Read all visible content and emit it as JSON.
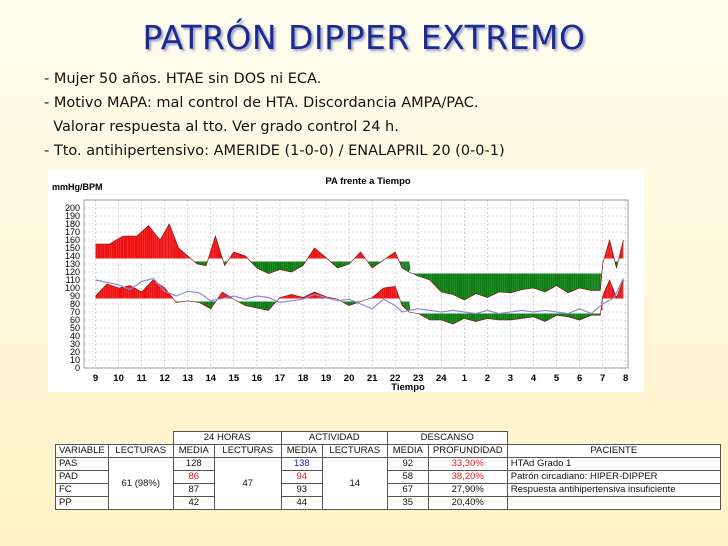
{
  "slide": {
    "title": "PATRÓN DIPPER EXTREMO",
    "bullets": [
      "- Mujer 50 años. HTAE sin DOS ni ECA.",
      "- Motivo MAPA: mal control de HTA. Discordancia AMPA/PAC.",
      "  Valorar respuesta al tto. Ver grado control 24 h.",
      "- Tto. antihipertensivo: AMERIDE (1-0-0) / ENALAPRIL 20 (0-0-1)"
    ]
  },
  "chart_data": {
    "type": "area",
    "title": "PA frente a Tiempo",
    "ylabel": "mmHg/BPM",
    "xlabel": "Tiempo",
    "ylim": [
      0,
      210
    ],
    "yticks": [
      0,
      10,
      20,
      30,
      40,
      50,
      60,
      70,
      80,
      90,
      100,
      110,
      120,
      130,
      140,
      150,
      160,
      170,
      180,
      190,
      200
    ],
    "xticks": [
      "9",
      "10",
      "11",
      "12",
      "13",
      "14",
      "15",
      "16",
      "17",
      "18",
      "19",
      "20",
      "21",
      "22",
      "23",
      "24",
      "1",
      "2",
      "3",
      "4",
      "5",
      "6",
      "7",
      "8"
    ],
    "thresholds": [
      {
        "name": "systolic_day",
        "value": 135,
        "start": 9,
        "end": 22.6
      },
      {
        "name": "systolic_night",
        "value": 120,
        "start": 22.6,
        "end": 7
      },
      {
        "name": "systolic_day_2",
        "value": 135,
        "start": 7,
        "end": 8
      },
      {
        "name": "diastolic_day",
        "value": 85,
        "start": 9,
        "end": 22.6
      },
      {
        "name": "diastolic_night",
        "value": 70,
        "start": 22.6,
        "end": 7
      },
      {
        "name": "diastolic_day_2",
        "value": 85,
        "start": 7,
        "end": 8
      }
    ],
    "series": [
      {
        "values": [
          [
            9,
            155
          ],
          [
            9.6,
            155
          ],
          [
            10.2,
            165
          ],
          [
            10.8,
            165
          ],
          [
            11.3,
            178
          ],
          [
            11.8,
            160
          ],
          [
            12.2,
            180
          ],
          [
            12.6,
            150
          ],
          [
            13,
            140
          ],
          [
            13.4,
            130
          ],
          [
            13.8,
            128
          ],
          [
            14.2,
            165
          ],
          [
            14.6,
            128
          ],
          [
            15,
            145
          ],
          [
            15.5,
            140
          ],
          [
            16,
            125
          ],
          [
            16.5,
            118
          ],
          [
            17,
            123
          ],
          [
            17.5,
            120
          ],
          [
            18,
            128
          ],
          [
            18.5,
            150
          ],
          [
            19,
            138
          ],
          [
            19.5,
            125
          ],
          [
            20,
            130
          ],
          [
            20.5,
            145
          ],
          [
            21,
            125
          ],
          [
            21.5,
            135
          ],
          [
            22,
            145
          ],
          [
            22.3,
            125
          ],
          [
            22.6,
            120
          ],
          [
            23,
            115
          ],
          [
            23.5,
            110
          ],
          [
            24,
            95
          ],
          [
            24.5,
            92
          ],
          [
            25,
            85
          ],
          [
            25.5,
            93
          ],
          [
            26,
            88
          ],
          [
            26.5,
            95
          ],
          [
            27,
            94
          ],
          [
            27.5,
            98
          ],
          [
            28,
            100
          ],
          [
            28.5,
            95
          ],
          [
            29,
            103
          ],
          [
            29.5,
            94
          ],
          [
            30,
            100
          ],
          [
            30.5,
            97
          ],
          [
            30.9,
            97
          ],
          [
            31,
            130
          ],
          [
            31.3,
            160
          ],
          [
            31.6,
            125
          ],
          [
            31.9,
            160
          ]
        ]
      },
      {
        "values": [
          [
            9,
            90
          ],
          [
            9.5,
            105
          ],
          [
            10,
            100
          ],
          [
            10.5,
            103
          ],
          [
            11,
            95
          ],
          [
            11.5,
            110
          ],
          [
            12,
            100
          ],
          [
            12.5,
            82
          ],
          [
            13,
            84
          ],
          [
            13.5,
            82
          ],
          [
            14,
            74
          ],
          [
            14.5,
            95
          ],
          [
            15,
            86
          ],
          [
            15.5,
            78
          ],
          [
            16,
            75
          ],
          [
            16.5,
            72
          ],
          [
            17,
            88
          ],
          [
            17.5,
            92
          ],
          [
            18,
            88
          ],
          [
            18.5,
            95
          ],
          [
            19,
            89
          ],
          [
            19.5,
            86
          ],
          [
            20,
            78
          ],
          [
            20.5,
            83
          ],
          [
            21,
            88
          ],
          [
            21.5,
            100
          ],
          [
            22,
            102
          ],
          [
            22.3,
            78
          ],
          [
            22.6,
            70
          ],
          [
            23,
            68
          ],
          [
            23.5,
            60
          ],
          [
            24,
            60
          ],
          [
            24.5,
            55
          ],
          [
            25,
            62
          ],
          [
            25.5,
            58
          ],
          [
            26,
            62
          ],
          [
            26.5,
            60
          ],
          [
            27,
            60
          ],
          [
            27.5,
            62
          ],
          [
            28,
            64
          ],
          [
            28.5,
            58
          ],
          [
            29,
            66
          ],
          [
            29.5,
            64
          ],
          [
            30,
            60
          ],
          [
            30.5,
            66
          ],
          [
            30.9,
            66
          ],
          [
            31,
            90
          ],
          [
            31.3,
            110
          ],
          [
            31.6,
            88
          ],
          [
            31.9,
            110
          ]
        ]
      },
      {
        "values": [
          [
            9,
            110
          ],
          [
            10,
            104
          ],
          [
            10.5,
            98
          ],
          [
            11,
            108
          ],
          [
            11.5,
            112
          ],
          [
            12,
            96
          ],
          [
            12.5,
            90
          ],
          [
            13,
            96
          ],
          [
            13.5,
            94
          ],
          [
            14,
            84
          ],
          [
            15,
            90
          ],
          [
            15.5,
            86
          ],
          [
            16,
            90
          ],
          [
            16.5,
            88
          ],
          [
            17,
            82
          ],
          [
            17.5,
            84
          ],
          [
            18,
            86
          ],
          [
            18.5,
            92
          ],
          [
            19,
            88
          ],
          [
            19.5,
            84
          ],
          [
            20,
            86
          ],
          [
            20.5,
            80
          ],
          [
            21,
            74
          ],
          [
            21.5,
            86
          ],
          [
            22,
            78
          ],
          [
            22.3,
            70
          ],
          [
            22.6,
            72
          ],
          [
            23,
            74
          ],
          [
            23.5,
            72
          ],
          [
            24,
            70
          ],
          [
            24.5,
            72
          ],
          [
            25,
            70
          ],
          [
            25.5,
            68
          ],
          [
            26,
            72
          ],
          [
            26.5,
            68
          ],
          [
            27,
            70
          ],
          [
            27.5,
            72
          ],
          [
            28,
            70
          ],
          [
            28.5,
            72
          ],
          [
            29,
            70
          ],
          [
            29.5,
            68
          ],
          [
            30,
            74
          ],
          [
            30.5,
            68
          ],
          [
            31,
            80
          ],
          [
            31.5,
            88
          ],
          [
            31.9,
            112
          ]
        ]
      }
    ]
  },
  "colors": {
    "excess": "#ee1111",
    "deficit": "#0b7d12",
    "fc_line": "#8b8bdb",
    "title": "#1c2b8f"
  },
  "table": {
    "group_headers": [
      "24 HORAS",
      "ACTIVIDAD",
      "DESCANSO"
    ],
    "columns": [
      "VARIABLE",
      "LECTURAS",
      "MEDIA",
      "LECTURAS",
      "MEDIA",
      "LECTURAS",
      "MEDIA",
      "PROFUNDIDAD",
      "PACIENTE"
    ],
    "lecturas_24h": "61 (98%)",
    "lecturas_actividad": "47",
    "lecturas_descanso": "14",
    "rows": [
      {
        "variable": "PAS",
        "media24": "128",
        "media_act": "138",
        "media_desc": "92",
        "profundidad": "33,30%"
      },
      {
        "variable": "PAD",
        "media24": "86",
        "media_act": "94",
        "media_desc": "58",
        "profundidad": "38,20%"
      },
      {
        "variable": "FC",
        "media24": "87",
        "media_act": "93",
        "media_desc": "67",
        "profundidad": "27,90%"
      },
      {
        "variable": "PP",
        "media24": "42",
        "media_act": "44",
        "media_desc": "35",
        "profundidad": "20,40%"
      }
    ],
    "paciente": [
      "HTAd Grado 1",
      "Patrón circadiano: HIPER-DIPPER",
      "Respuesta antihipertensiva insuficiente"
    ]
  }
}
